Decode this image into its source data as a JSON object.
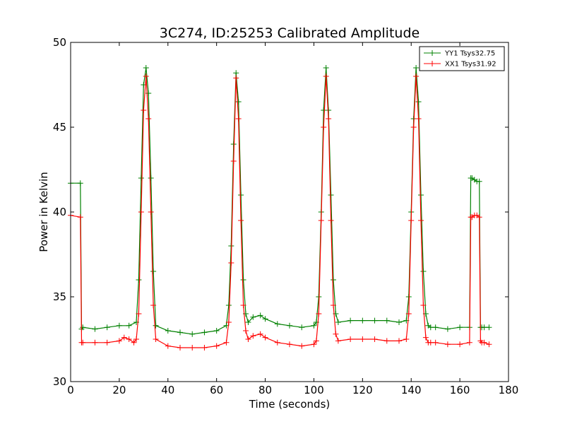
{
  "chart_data": {
    "type": "line",
    "title": "3C274, ID:25253 Calibrated Amplitude",
    "xlabel": "Time (seconds)",
    "ylabel": "Power in Kelvin",
    "xlim": [
      0,
      180
    ],
    "ylim": [
      30,
      50
    ],
    "xticks": [
      0,
      20,
      40,
      60,
      80,
      100,
      120,
      140,
      160,
      180
    ],
    "yticks": [
      30,
      35,
      40,
      45,
      50
    ],
    "grid": false,
    "legend_position": "top-right",
    "marker": "plus",
    "series": [
      {
        "name": "YY1 Tsys32.75",
        "color": "#008000",
        "x": [
          0,
          4,
          4.5,
          5,
          10,
          15,
          20,
          24,
          27,
          28,
          29,
          30,
          31,
          32,
          33,
          34,
          35,
          40,
          45,
          50,
          55,
          60,
          64,
          65,
          66,
          67,
          68,
          69,
          70,
          71,
          72,
          73,
          75,
          78,
          80,
          85,
          90,
          95,
          100,
          101,
          102,
          103,
          104,
          105,
          106,
          107,
          108,
          109,
          110,
          115,
          120,
          125,
          130,
          135,
          138,
          139,
          140,
          141,
          142,
          143,
          144,
          145,
          146,
          147,
          148,
          150,
          155,
          160,
          164,
          164.5,
          165,
          166,
          167,
          168,
          168.5,
          169,
          170,
          172
        ],
        "y": [
          41.7,
          41.7,
          33.1,
          33.2,
          33.1,
          33.2,
          33.3,
          33.3,
          33.5,
          36.0,
          42.0,
          47.5,
          48.5,
          47.0,
          42.0,
          36.5,
          33.3,
          33.0,
          32.9,
          32.8,
          32.9,
          33.0,
          33.3,
          34.5,
          38.0,
          44.0,
          48.2,
          46.5,
          41.0,
          36.0,
          34.0,
          33.5,
          33.8,
          33.9,
          33.7,
          33.4,
          33.3,
          33.2,
          33.3,
          33.5,
          35.0,
          40.0,
          46.0,
          48.5,
          46.0,
          41.0,
          36.0,
          34.0,
          33.5,
          33.6,
          33.6,
          33.6,
          33.6,
          33.5,
          33.6,
          35.0,
          40.0,
          45.5,
          48.5,
          46.5,
          41.0,
          36.5,
          34.0,
          33.3,
          33.2,
          33.2,
          33.1,
          33.2,
          33.2,
          42.0,
          42.0,
          41.9,
          41.8,
          41.8,
          33.2,
          33.2,
          33.2,
          33.2
        ]
      },
      {
        "name": "XX1 Tsys31.92",
        "color": "#ff0000",
        "x": [
          0,
          4,
          4.5,
          5,
          10,
          15,
          20,
          22,
          24,
          26,
          27,
          28,
          29,
          30,
          31,
          32,
          33,
          34,
          35,
          40,
          45,
          50,
          55,
          60,
          64,
          65,
          66,
          67,
          68,
          69,
          70,
          71,
          72,
          73,
          75,
          78,
          80,
          85,
          90,
          95,
          100,
          101,
          102,
          103,
          104,
          105,
          106,
          107,
          108,
          109,
          110,
          115,
          120,
          125,
          130,
          135,
          138,
          139,
          140,
          141,
          142,
          143,
          144,
          145,
          146,
          147,
          148,
          150,
          155,
          160,
          164,
          164.5,
          165,
          166,
          167,
          168,
          168.5,
          169,
          170,
          172
        ],
        "y": [
          39.8,
          39.7,
          32.3,
          32.3,
          32.3,
          32.3,
          32.4,
          32.6,
          32.5,
          32.3,
          32.5,
          34.0,
          40.0,
          46.0,
          48.0,
          45.5,
          40.0,
          34.5,
          32.5,
          32.1,
          32.0,
          32.0,
          32.0,
          32.1,
          32.3,
          33.5,
          37.0,
          43.0,
          47.9,
          45.5,
          39.5,
          34.5,
          33.0,
          32.5,
          32.7,
          32.8,
          32.6,
          32.3,
          32.2,
          32.1,
          32.2,
          32.4,
          34.0,
          39.5,
          45.0,
          48.0,
          45.5,
          39.5,
          34.5,
          32.8,
          32.4,
          32.5,
          32.5,
          32.5,
          32.4,
          32.4,
          32.5,
          34.0,
          39.5,
          45.0,
          48.0,
          45.5,
          39.5,
          34.5,
          32.6,
          32.3,
          32.3,
          32.3,
          32.2,
          32.2,
          32.3,
          39.7,
          39.7,
          39.8,
          39.8,
          39.7,
          32.4,
          32.3,
          32.3,
          32.2
        ]
      }
    ]
  }
}
